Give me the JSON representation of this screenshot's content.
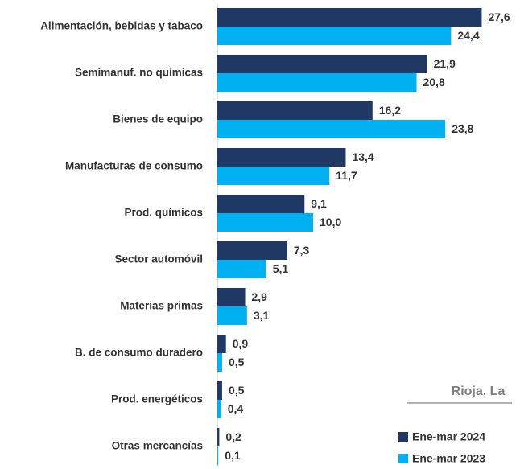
{
  "chart_data": {
    "type": "hbar",
    "categories": [
      "Alimentación, bebidas y tabaco",
      "Semimanuf. no químicas",
      "Bienes de equipo",
      "Manufacturas de consumo",
      "Prod. químicos",
      "Sector automóvil",
      "Materias primas",
      "B. de consumo duradero",
      "Prod. energéticos",
      "Otras mercancías"
    ],
    "series": [
      {
        "name": "Ene-mar 2024",
        "color": "#1f3864",
        "values": [
          27.6,
          21.9,
          16.2,
          13.4,
          9.1,
          7.3,
          2.9,
          0.9,
          0.5,
          0.2
        ],
        "value_labels": [
          "27,6",
          "21,9",
          "16,2",
          "13,4",
          "9,1",
          "7,3",
          "2,9",
          "0,9",
          "0,5",
          "0,2"
        ]
      },
      {
        "name": "Ene-mar 2023",
        "color": "#00b0f0",
        "values": [
          24.4,
          20.8,
          23.8,
          11.7,
          10.0,
          5.1,
          3.1,
          0.5,
          0.4,
          0.1
        ],
        "value_labels": [
          "24,4",
          "20,8",
          "23,8",
          "11,7",
          "10,0",
          "5,1",
          "3,1",
          "0,5",
          "0,4",
          "0,1"
        ]
      }
    ],
    "annotation": "Rioja, La",
    "xlim": [
      0,
      30
    ],
    "legend": "lower right"
  }
}
